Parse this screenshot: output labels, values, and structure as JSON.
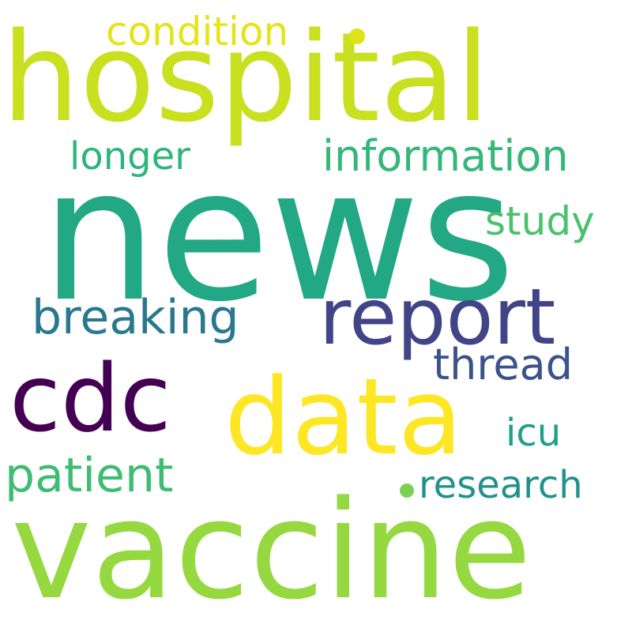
{
  "words": {
    "hospital": {
      "text": "hospital",
      "color": "#c8e020"
    },
    "news": {
      "text": "news",
      "color": "#22a884"
    },
    "vaccine": {
      "text": "vaccine",
      "color": "#95d840"
    },
    "data": {
      "text": "data",
      "color": "#fde725"
    },
    "cdc": {
      "text": "cdc",
      "color": "#440154"
    },
    "report": {
      "text": "report",
      "color": "#414487"
    },
    "breaking": {
      "text": "breaking",
      "color": "#2a788e"
    },
    "patient": {
      "text": "patient",
      "color": "#3fbc73"
    },
    "information": {
      "text": "information",
      "color": "#35b779"
    },
    "condition": {
      "text": "condition",
      "color": "#e5e419"
    },
    "longer": {
      "text": "longer",
      "color": "#2fb47c"
    },
    "study": {
      "text": "study",
      "color": "#4ac16d"
    },
    "thread": {
      "text": "thread",
      "color": "#3b528b"
    },
    "icu": {
      "text": "icu",
      "color": "#1f9e89"
    },
    "research": {
      "text": "research",
      "color": "#21918c"
    }
  },
  "dots": [
    {
      "color": "#dfe318"
    },
    {
      "color": "#7ad151"
    }
  ]
}
